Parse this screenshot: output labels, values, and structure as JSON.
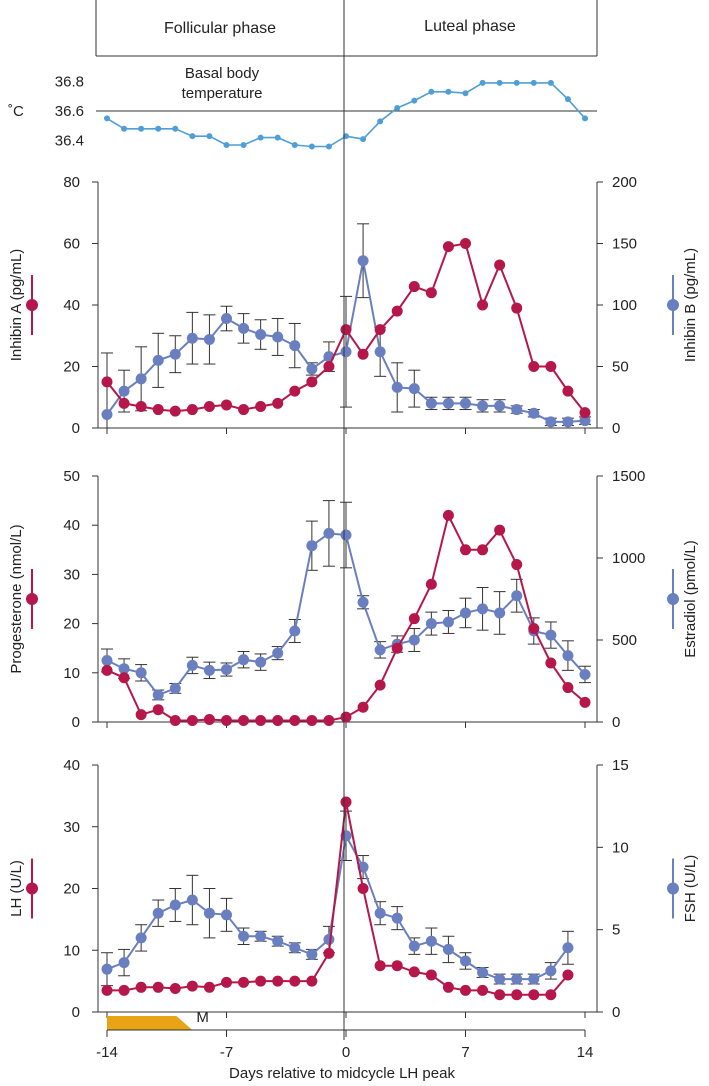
{
  "colors": {
    "red": "#b5174a",
    "blue": "#6a7fc0",
    "temp": "#4f9fd6",
    "menses": "#e8a317",
    "axis": "#333333"
  },
  "chart_data": {
    "type": "line",
    "x_axis": {
      "label": "Days relative to midcycle LH peak",
      "ticks": [
        -14,
        -7,
        0,
        7,
        14
      ],
      "range": [
        -14,
        14
      ]
    },
    "phases": {
      "follicular": "Follicular phase",
      "luteal": "Luteal phase"
    },
    "menses": {
      "label": "M",
      "start": -14,
      "end": -9
    },
    "temperature": {
      "unit_label": "˚C",
      "caption": [
        "Basal body",
        "temperature"
      ],
      "ticks": [
        "36.4",
        "36.6",
        "36.8"
      ],
      "range": [
        36.35,
        36.85
      ],
      "reference": 36.6,
      "x": [
        -14,
        -13,
        -12,
        -11,
        -10,
        -9,
        -8,
        -7,
        -6,
        -5,
        -4,
        -3,
        -2,
        -1,
        0,
        1,
        2,
        3,
        4,
        5,
        6,
        7,
        8,
        9,
        10,
        11,
        12,
        13,
        14
      ],
      "values": [
        36.55,
        36.48,
        36.48,
        36.48,
        36.48,
        36.43,
        36.43,
        36.37,
        36.37,
        36.42,
        36.42,
        36.37,
        36.36,
        36.36,
        36.43,
        36.41,
        36.53,
        36.62,
        36.67,
        36.73,
        36.73,
        36.72,
        36.79,
        36.79,
        36.79,
        36.79,
        36.79,
        36.68,
        36.55
      ]
    },
    "panels": [
      {
        "left_axis": {
          "label": "Inhibin A (pg/mL)",
          "ticks": [
            "0",
            "20",
            "40",
            "60",
            "80"
          ],
          "range": [
            0,
            80
          ]
        },
        "right_axis": {
          "label": "Inhibin B (pg/mL)",
          "ticks": [
            "0",
            "50",
            "100",
            "150",
            "200"
          ],
          "range": [
            0,
            200
          ]
        },
        "series": [
          {
            "name": "Inhibin A",
            "axis": "left",
            "color": "red",
            "x": [
              -14,
              -13,
              -12,
              -11,
              -10,
              -9,
              -8,
              -7,
              -6,
              -5,
              -4,
              -3,
              -2,
              -1,
              0,
              1,
              2,
              3,
              4,
              5,
              6,
              7,
              8,
              9,
              10,
              11,
              12,
              13,
              14
            ],
            "values": [
              15,
              8,
              7,
              6,
              5.5,
              6,
              7,
              7.5,
              6,
              7,
              8,
              12,
              15,
              20,
              32,
              24,
              32,
              38,
              46,
              44,
              59,
              60,
              40,
              53,
              39,
              20,
              20,
              12,
              5
            ]
          },
          {
            "name": "Inhibin B",
            "axis": "right",
            "color": "blue",
            "x": [
              -14,
              -13,
              -12,
              -11,
              -10,
              -9,
              -8,
              -7,
              -6,
              -5,
              -4,
              -3,
              -2,
              -1,
              0,
              1,
              2,
              3,
              4,
              5,
              6,
              7,
              8,
              9,
              10,
              11,
              12,
              13,
              14
            ],
            "values": [
              11,
              30,
              40,
              55,
              60,
              73,
              72,
              89,
              81,
              76,
              74,
              67,
              48,
              58,
              62,
              136,
              62,
              33,
              32,
              20,
              20,
              20,
              18,
              18,
              15,
              12,
              5,
              5,
              6
            ],
            "err": [
              50,
              17,
              26,
              22,
              15,
              21,
              20,
              10,
              12,
              12,
              15,
              18,
              5,
              12,
              45,
              30,
              20,
              20,
              15,
              5,
              5,
              5,
              5,
              5,
              3,
              3,
              3,
              3,
              3
            ]
          }
        ]
      },
      {
        "left_axis": {
          "label": "Progesterone (nmol/L)",
          "ticks": [
            "0",
            "10",
            "20",
            "30",
            "40",
            "50"
          ],
          "range": [
            0,
            50
          ]
        },
        "right_axis": {
          "label": "Estradiol (pmol/L)",
          "ticks": [
            "0",
            "500",
            "1000",
            "1500"
          ],
          "range": [
            0,
            1500
          ]
        },
        "series": [
          {
            "name": "Progesterone",
            "axis": "left",
            "color": "red",
            "x": [
              -14,
              -13,
              -12,
              -11,
              -10,
              -9,
              -8,
              -7,
              -6,
              -5,
              -4,
              -3,
              -2,
              -1,
              0,
              1,
              2,
              3,
              4,
              5,
              6,
              7,
              8,
              9,
              10,
              11,
              12,
              13,
              14
            ],
            "values": [
              10.5,
              9,
              1.5,
              2.5,
              0.3,
              0.3,
              0.5,
              0.3,
              0.3,
              0.3,
              0.3,
              0.3,
              0.3,
              0.3,
              1,
              3,
              7.5,
              15,
              21,
              28,
              42,
              35,
              35,
              39,
              32,
              19,
              12,
              7,
              4
            ]
          },
          {
            "name": "Estradiol",
            "axis": "right",
            "color": "blue",
            "x": [
              -14,
              -13,
              -12,
              -11,
              -10,
              -9,
              -8,
              -7,
              -6,
              -5,
              -4,
              -3,
              -2,
              -1,
              0,
              1,
              2,
              3,
              4,
              5,
              6,
              7,
              8,
              9,
              10,
              11,
              12,
              13,
              14
            ],
            "values": [
              375,
              325,
              300,
              165,
              205,
              345,
              315,
              320,
              380,
              365,
              420,
              555,
              1075,
              1150,
              1140,
              730,
              440,
              475,
              500,
              600,
              610,
              665,
              690,
              665,
              770,
              555,
              530,
              405,
              290
            ],
            "err": [
              70,
              60,
              50,
              30,
              30,
              50,
              50,
              40,
              50,
              50,
              40,
              70,
              150,
              200,
              200,
              40,
              50,
              50,
              70,
              70,
              70,
              90,
              130,
              130,
              100,
              80,
              80,
              90,
              50
            ]
          }
        ]
      },
      {
        "left_axis": {
          "label": "LH (U/L)",
          "ticks": [
            "0",
            "10",
            "20",
            "30",
            "40"
          ],
          "range": [
            0,
            40
          ]
        },
        "right_axis": {
          "label": "FSH (U/L)",
          "ticks": [
            "0",
            "5",
            "10",
            "15"
          ],
          "range": [
            0,
            15
          ]
        },
        "series": [
          {
            "name": "LH",
            "axis": "left",
            "color": "red",
            "x": [
              -14,
              -13,
              -12,
              -11,
              -10,
              -9,
              -8,
              -7,
              -6,
              -5,
              -4,
              -3,
              -2,
              -1,
              0,
              1,
              2,
              3,
              4,
              5,
              6,
              7,
              8,
              9,
              10,
              11,
              12,
              13,
              14
            ],
            "values": [
              3.5,
              3.5,
              4,
              4,
              3.8,
              4.2,
              4,
              4.8,
              4.8,
              5,
              5,
              5,
              5,
              9.5,
              34,
              20,
              7.5,
              7.5,
              6.5,
              6,
              4,
              3.5,
              3.5,
              2.8,
              2.8,
              2.8,
              2.8,
              6,
              null
            ]
          },
          {
            "name": "FSH",
            "axis": "right",
            "color": "blue",
            "x": [
              -14,
              -13,
              -12,
              -11,
              -10,
              -9,
              -8,
              -7,
              -6,
              -5,
              -4,
              -3,
              -2,
              -1,
              0,
              1,
              2,
              3,
              4,
              5,
              6,
              7,
              8,
              9,
              10,
              11,
              12,
              13,
              14
            ],
            "values": [
              2.6,
              3,
              4.5,
              6,
              6.5,
              6.8,
              6,
              5.9,
              4.6,
              4.6,
              4.3,
              3.9,
              3.5,
              4.4,
              10.7,
              8.8,
              6,
              5.7,
              4,
              4.3,
              3.8,
              3.1,
              2.4,
              2,
              2,
              2,
              2.5,
              3.9,
              null
            ],
            "err": [
              1,
              0.8,
              0.8,
              0.8,
              1,
              1.5,
              1.5,
              1,
              0.5,
              0.3,
              0.3,
              0.3,
              0.3,
              0.8,
              1.5,
              0.7,
              0.7,
              0.7,
              0.5,
              0.8,
              0.8,
              0.5,
              0.3,
              0.3,
              0.3,
              0.3,
              0.5,
              1,
              null
            ]
          }
        ]
      }
    ]
  }
}
